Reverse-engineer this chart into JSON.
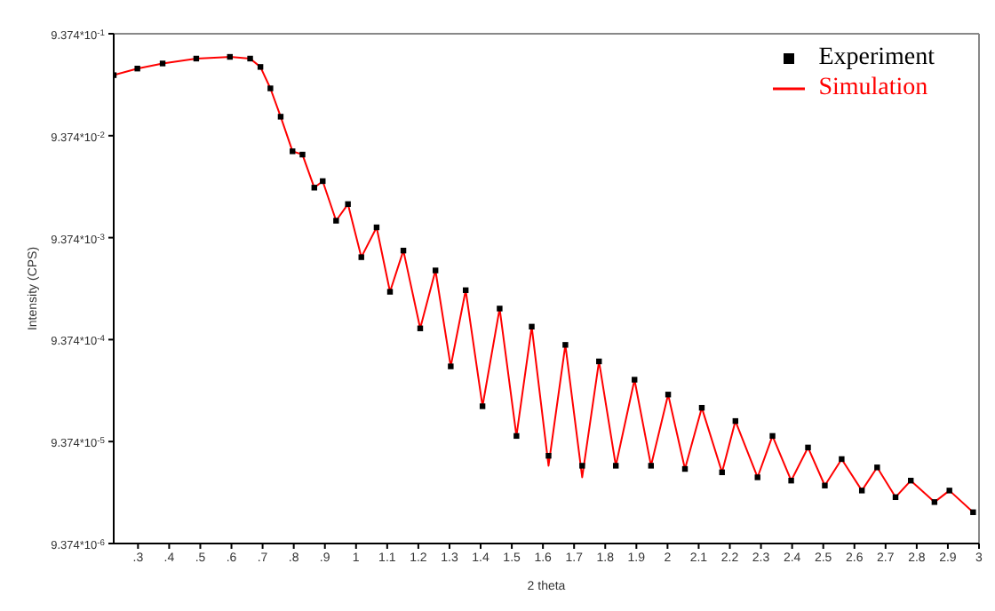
{
  "chart_data": {
    "type": "scatter",
    "xlabel": "2 theta",
    "ylabel": "Intensity (CPS)",
    "log": "y",
    "legend": "top right",
    "xlim": [
      0.222,
      3.0
    ],
    "xticks": [
      {
        "value": 0.3,
        "label": ".3"
      },
      {
        "value": 0.4,
        "label": ".4"
      },
      {
        "value": 0.5,
        "label": ".5"
      },
      {
        "value": 0.6,
        "label": ".6"
      },
      {
        "value": 0.7,
        "label": ".7"
      },
      {
        "value": 0.8,
        "label": ".8"
      },
      {
        "value": 0.9,
        "label": ".9"
      },
      1,
      1.1,
      1.2,
      1.3,
      1.4,
      1.5,
      1.6,
      1.7,
      1.8,
      1.9,
      2,
      2.1,
      2.2,
      2.3,
      2.4,
      2.5,
      2.6,
      2.7,
      2.8,
      2.9,
      3
    ],
    "ylim": [
      9.374e-06,
      0.9374
    ],
    "yticks": [
      {
        "value": 9.374e-06,
        "label": "9.374*10$^{-6}$"
      },
      {
        "value": 9.374e-05,
        "label": "9.374*10$^{-5}$"
      },
      {
        "value": 0.0009374,
        "label": "9.374*10$^{-4}$"
      },
      {
        "value": 0.009374,
        "label": "9.374*10$^{-3}$"
      },
      {
        "value": 0.09374,
        "label": "9.374*10$^{-2}$"
      },
      {
        "value": 0.9374,
        "label": "9.374*10$^{-1}$"
      }
    ],
    "x": [
      0.222,
      0.298,
      0.379,
      0.487,
      0.595,
      0.66,
      0.693,
      0.725,
      0.758,
      0.796,
      0.828,
      0.866,
      0.893,
      0.936,
      0.974,
      1.017,
      1.066,
      1.109,
      1.152,
      1.206,
      1.255,
      1.304,
      1.352,
      1.406,
      1.461,
      1.515,
      1.564,
      1.618,
      1.672,
      1.726,
      1.78,
      1.834,
      1.894,
      1.947,
      2.002,
      2.056,
      2.11,
      2.175,
      2.218,
      2.289,
      2.337,
      2.397,
      2.451,
      2.505,
      2.559,
      2.624,
      2.673,
      2.732,
      2.781,
      2.857,
      2.905,
      2.981
    ],
    "series": [
      {
        "name": "Experiment",
        "marker": "square",
        "color": "#000000",
        "values": [
          0.368,
          0.427,
          0.479,
          0.535,
          0.556,
          0.535,
          0.443,
          0.273,
          0.144,
          0.0659,
          0.0612,
          0.029,
          0.0336,
          0.01374,
          0.02,
          0.00603,
          0.01183,
          0.00276,
          0.007,
          0.001208,
          0.00447,
          0.000512,
          0.00286,
          0.000208,
          0.00189,
          0.0001064,
          0.001256,
          6.8e-05,
          0.000832,
          5.43e-05,
          0.000573,
          5.43e-05,
          0.000379,
          5.43e-05,
          0.000271,
          5.05e-05,
          0.000201,
          4.68e-05,
          0.000149,
          4.18e-05,
          0.0001064,
          3.88e-05,
          8.2e-05,
          3.47e-05,
          6.31e-05,
          3.1e-05,
          5.23e-05,
          2.67e-05,
          3.88e-05,
          2.39e-05,
          3.1e-05,
          1.9e-05
        ]
      },
      {
        "name": "Simulation",
        "type": "line",
        "color": "#ff0000",
        "values": [
          0.368,
          0.427,
          0.479,
          0.535,
          0.556,
          0.535,
          0.443,
          0.273,
          0.144,
          0.0659,
          0.0612,
          0.029,
          0.0336,
          0.01374,
          0.02,
          0.00603,
          0.01183,
          0.00276,
          0.007,
          0.001208,
          0.00447,
          0.000512,
          0.00286,
          0.000208,
          0.00189,
          0.0001064,
          0.001256,
          5.43e-05,
          0.000832,
          4.18e-05,
          0.000573,
          5.43e-05,
          0.000379,
          5.43e-05,
          0.000271,
          5.05e-05,
          0.000201,
          4.68e-05,
          0.000149,
          4.18e-05,
          0.0001064,
          3.88e-05,
          8.2e-05,
          3.47e-05,
          6.31e-05,
          3.1e-05,
          5.23e-05,
          2.67e-05,
          3.88e-05,
          2.39e-05,
          3.1e-05,
          1.9e-05
        ]
      }
    ]
  }
}
